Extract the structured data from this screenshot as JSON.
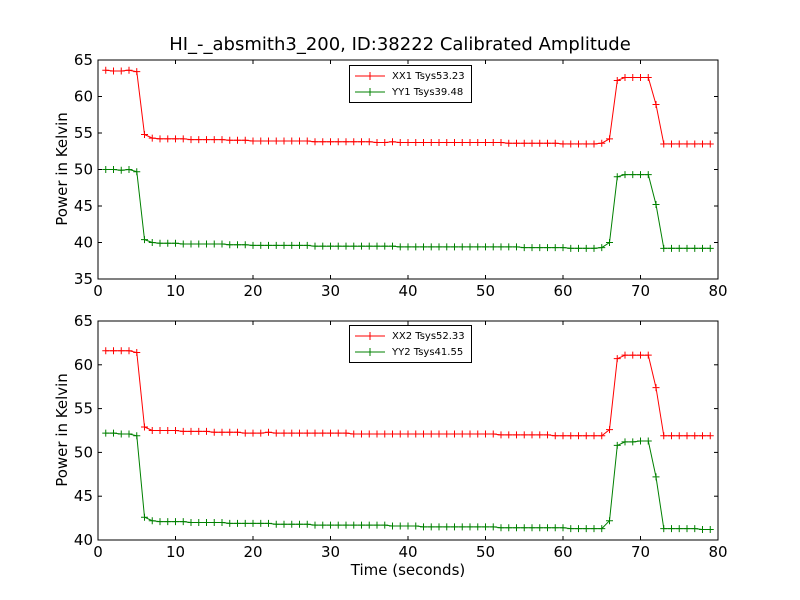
{
  "chart_data": [
    {
      "type": "line",
      "title": "HI_-_absmith3_200, ID:38222 Calibrated Amplitude",
      "xlabel": "",
      "ylabel": "Power in Kelvin",
      "xlim": [
        0,
        80
      ],
      "ylim": [
        35,
        65
      ],
      "x_ticks": [
        0,
        10,
        20,
        30,
        40,
        50,
        60,
        70,
        80
      ],
      "y_ticks": [
        35,
        40,
        45,
        50,
        55,
        60,
        65
      ],
      "grid": false,
      "legend_position": "top-center",
      "x": [
        1,
        2,
        3,
        4,
        5,
        6,
        7,
        8,
        9,
        10,
        11,
        12,
        13,
        14,
        15,
        16,
        17,
        18,
        19,
        20,
        21,
        22,
        23,
        24,
        25,
        26,
        27,
        28,
        29,
        30,
        31,
        32,
        33,
        34,
        35,
        36,
        37,
        38,
        39,
        40,
        41,
        42,
        43,
        44,
        45,
        46,
        47,
        48,
        49,
        50,
        51,
        52,
        53,
        54,
        55,
        56,
        57,
        58,
        59,
        60,
        61,
        62,
        63,
        64,
        65,
        66,
        67,
        68,
        69,
        70,
        71,
        72,
        73,
        74,
        75,
        76,
        77,
        78,
        79
      ],
      "series": [
        {
          "name": "XX1 Tsys53.23",
          "color": "#ff0000",
          "values": [
            63.6,
            63.5,
            63.5,
            63.6,
            63.4,
            54.8,
            54.3,
            54.2,
            54.2,
            54.2,
            54.2,
            54.1,
            54.1,
            54.1,
            54.1,
            54.1,
            54.0,
            54.0,
            54.0,
            53.9,
            53.9,
            53.9,
            53.9,
            53.9,
            53.9,
            53.9,
            53.9,
            53.8,
            53.8,
            53.8,
            53.8,
            53.8,
            53.8,
            53.8,
            53.8,
            53.7,
            53.7,
            53.8,
            53.7,
            53.7,
            53.7,
            53.7,
            53.7,
            53.7,
            53.7,
            53.7,
            53.7,
            53.7,
            53.7,
            53.7,
            53.7,
            53.7,
            53.6,
            53.6,
            53.6,
            53.6,
            53.6,
            53.6,
            53.6,
            53.5,
            53.5,
            53.5,
            53.5,
            53.5,
            53.6,
            54.2,
            62.2,
            62.6,
            62.6,
            62.6,
            62.6,
            58.9,
            53.5,
            53.5,
            53.5,
            53.5,
            53.5,
            53.5,
            53.5
          ]
        },
        {
          "name": "YY1 Tsys39.48",
          "color": "#008000",
          "values": [
            50.0,
            50.0,
            49.9,
            50.0,
            49.7,
            40.4,
            40.0,
            39.9,
            39.9,
            39.9,
            39.8,
            39.8,
            39.8,
            39.8,
            39.8,
            39.8,
            39.7,
            39.7,
            39.7,
            39.6,
            39.6,
            39.6,
            39.6,
            39.6,
            39.6,
            39.6,
            39.6,
            39.5,
            39.5,
            39.5,
            39.5,
            39.5,
            39.5,
            39.5,
            39.5,
            39.5,
            39.5,
            39.5,
            39.4,
            39.4,
            39.4,
            39.4,
            39.4,
            39.4,
            39.4,
            39.4,
            39.4,
            39.4,
            39.4,
            39.4,
            39.4,
            39.4,
            39.4,
            39.4,
            39.3,
            39.3,
            39.3,
            39.3,
            39.3,
            39.3,
            39.2,
            39.2,
            39.2,
            39.2,
            39.3,
            40.0,
            49.0,
            49.3,
            49.3,
            49.3,
            49.3,
            45.2,
            39.2,
            39.2,
            39.2,
            39.2,
            39.2,
            39.2,
            39.2
          ]
        }
      ]
    },
    {
      "type": "line",
      "title": "",
      "xlabel": "Time (seconds)",
      "ylabel": "Power in Kelvin",
      "xlim": [
        0,
        80
      ],
      "ylim": [
        40,
        65
      ],
      "x_ticks": [
        0,
        10,
        20,
        30,
        40,
        50,
        60,
        70,
        80
      ],
      "y_ticks": [
        40,
        45,
        50,
        55,
        60,
        65
      ],
      "grid": false,
      "legend_position": "top-center",
      "x": [
        1,
        2,
        3,
        4,
        5,
        6,
        7,
        8,
        9,
        10,
        11,
        12,
        13,
        14,
        15,
        16,
        17,
        18,
        19,
        20,
        21,
        22,
        23,
        24,
        25,
        26,
        27,
        28,
        29,
        30,
        31,
        32,
        33,
        34,
        35,
        36,
        37,
        38,
        39,
        40,
        41,
        42,
        43,
        44,
        45,
        46,
        47,
        48,
        49,
        50,
        51,
        52,
        53,
        54,
        55,
        56,
        57,
        58,
        59,
        60,
        61,
        62,
        63,
        64,
        65,
        66,
        67,
        68,
        69,
        70,
        71,
        72,
        73,
        74,
        75,
        76,
        77,
        78,
        79
      ],
      "series": [
        {
          "name": "XX2 Tsys52.33",
          "color": "#ff0000",
          "values": [
            61.6,
            61.6,
            61.6,
            61.6,
            61.4,
            52.9,
            52.5,
            52.5,
            52.5,
            52.5,
            52.4,
            52.4,
            52.4,
            52.4,
            52.3,
            52.3,
            52.3,
            52.3,
            52.2,
            52.2,
            52.2,
            52.3,
            52.2,
            52.2,
            52.2,
            52.2,
            52.2,
            52.2,
            52.2,
            52.2,
            52.2,
            52.2,
            52.1,
            52.1,
            52.1,
            52.1,
            52.1,
            52.1,
            52.1,
            52.1,
            52.1,
            52.1,
            52.1,
            52.1,
            52.1,
            52.1,
            52.1,
            52.1,
            52.1,
            52.1,
            52.1,
            52.0,
            52.0,
            52.0,
            52.0,
            52.0,
            52.0,
            52.0,
            51.9,
            51.9,
            51.9,
            51.9,
            51.9,
            51.9,
            51.9,
            52.6,
            60.7,
            61.1,
            61.1,
            61.1,
            61.1,
            57.4,
            51.9,
            51.9,
            51.9,
            51.9,
            51.9,
            51.9,
            51.9
          ]
        },
        {
          "name": "YY2 Tsys41.55",
          "color": "#008000",
          "values": [
            52.2,
            52.2,
            52.1,
            52.1,
            51.9,
            42.6,
            42.2,
            42.1,
            42.1,
            42.1,
            42.1,
            42.0,
            42.0,
            42.0,
            42.0,
            42.0,
            41.9,
            41.9,
            41.9,
            41.9,
            41.9,
            41.9,
            41.8,
            41.8,
            41.8,
            41.8,
            41.8,
            41.7,
            41.7,
            41.7,
            41.7,
            41.7,
            41.7,
            41.7,
            41.7,
            41.7,
            41.7,
            41.6,
            41.6,
            41.6,
            41.6,
            41.5,
            41.5,
            41.5,
            41.5,
            41.5,
            41.5,
            41.5,
            41.5,
            41.5,
            41.5,
            41.4,
            41.4,
            41.4,
            41.4,
            41.4,
            41.4,
            41.4,
            41.4,
            41.4,
            41.3,
            41.3,
            41.3,
            41.3,
            41.3,
            42.2,
            50.8,
            51.2,
            51.2,
            51.3,
            51.3,
            47.2,
            41.3,
            41.3,
            41.3,
            41.3,
            41.3,
            41.2,
            41.2
          ]
        }
      ]
    }
  ]
}
